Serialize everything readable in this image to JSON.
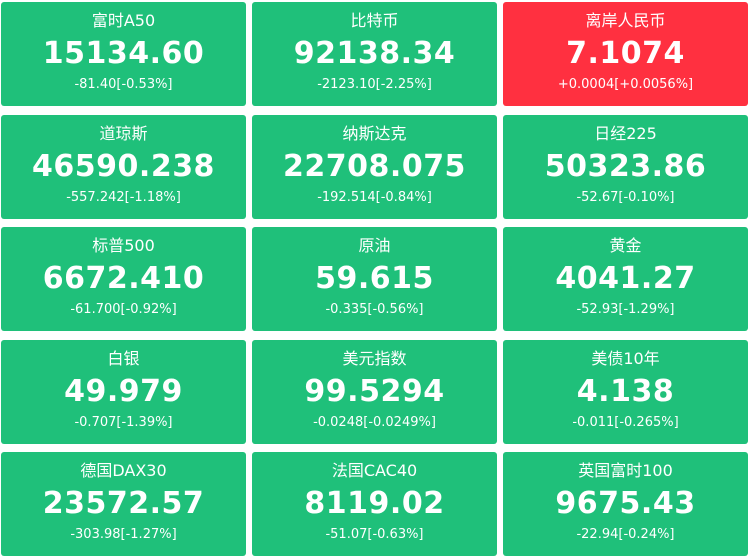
{
  "colors": {
    "down": "#1fc07a",
    "up": "#ff3040"
  },
  "tiles": [
    {
      "name": "富时A50",
      "price": "15134.60",
      "change": "-81.40[-0.53%]",
      "trend": "down"
    },
    {
      "name": "比特币",
      "price": "92138.34",
      "change": "-2123.10[-2.25%]",
      "trend": "down"
    },
    {
      "name": "离岸人民币",
      "price": "7.1074",
      "change": "+0.0004[+0.0056%]",
      "trend": "up"
    },
    {
      "name": "道琼斯",
      "price": "46590.238",
      "change": "-557.242[-1.18%]",
      "trend": "down"
    },
    {
      "name": "纳斯达克",
      "price": "22708.075",
      "change": "-192.514[-0.84%]",
      "trend": "down"
    },
    {
      "name": "日经225",
      "price": "50323.86",
      "change": "-52.67[-0.10%]",
      "trend": "down"
    },
    {
      "name": "标普500",
      "price": "6672.410",
      "change": "-61.700[-0.92%]",
      "trend": "down"
    },
    {
      "name": "原油",
      "price": "59.615",
      "change": "-0.335[-0.56%]",
      "trend": "down"
    },
    {
      "name": "黄金",
      "price": "4041.27",
      "change": "-52.93[-1.29%]",
      "trend": "down"
    },
    {
      "name": "白银",
      "price": "49.979",
      "change": "-0.707[-1.39%]",
      "trend": "down"
    },
    {
      "name": "美元指数",
      "price": "99.5294",
      "change": "-0.0248[-0.0249%]",
      "trend": "down"
    },
    {
      "name": "美债10年",
      "price": "4.138",
      "change": "-0.011[-0.265%]",
      "trend": "down"
    },
    {
      "name": "德国DAX30",
      "price": "23572.57",
      "change": "-303.98[-1.27%]",
      "trend": "down"
    },
    {
      "name": "法国CAC40",
      "price": "8119.02",
      "change": "-51.07[-0.63%]",
      "trend": "down"
    },
    {
      "name": "英国富时100",
      "price": "9675.43",
      "change": "-22.94[-0.24%]",
      "trend": "down"
    }
  ]
}
